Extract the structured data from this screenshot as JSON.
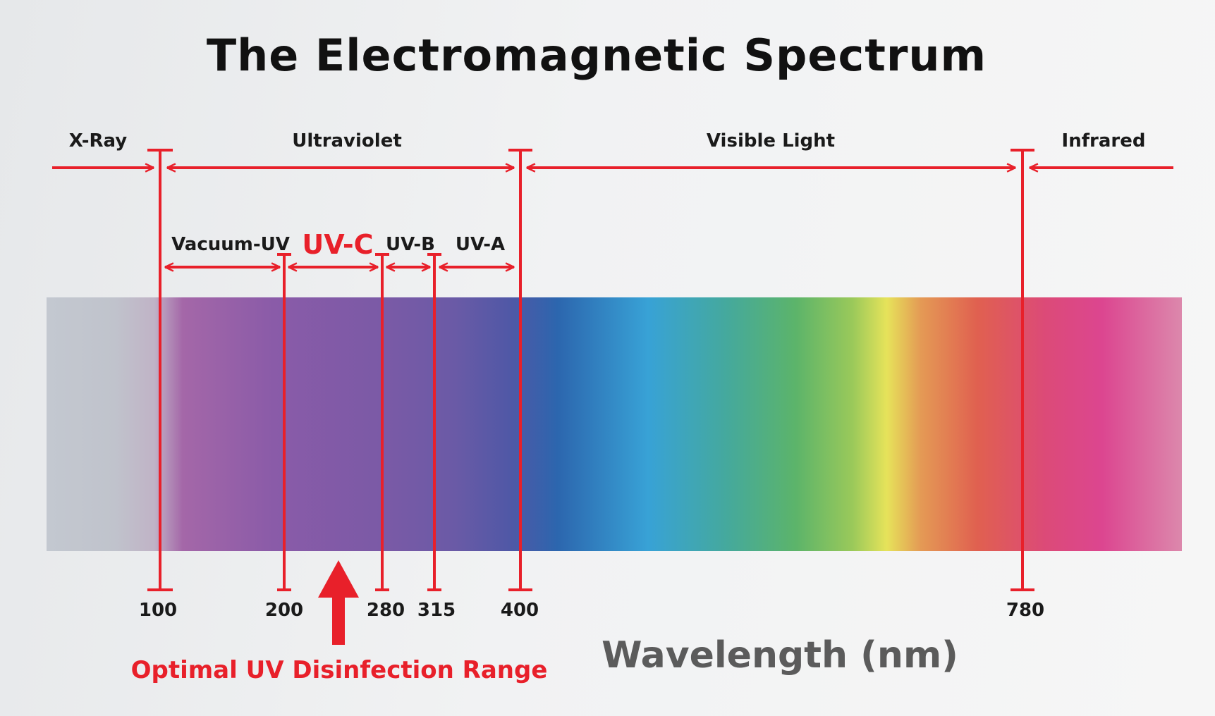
{
  "title": "The Electromagnetic Spectrum",
  "colors": {
    "accent": "#e8202a",
    "text": "#1a1a1a",
    "axis_text": "#5b5b5b"
  },
  "regions": [
    {
      "label": "X-Ray"
    },
    {
      "label": "Ultraviolet"
    },
    {
      "label": "Visible Light"
    },
    {
      "label": "Infrared"
    }
  ],
  "uv_bands": [
    {
      "label": "Vacuum-UV"
    },
    {
      "label": "UV-C",
      "highlight": true
    },
    {
      "label": "UV-B"
    },
    {
      "label": "UV-A"
    }
  ],
  "ticks": [
    "100",
    "200",
    "280",
    "315",
    "400",
    "780"
  ],
  "axis_label": "Wavelength (nm)",
  "callout": "Optimal UV Disinfection Range",
  "spectrum_colors": [
    "#c3c8d0",
    "#c0b3c6",
    "#a467a8",
    "#8a5ba8",
    "#7a5aa6",
    "#6a5aa6",
    "#5a5aa8",
    "#4a5aa6",
    "#2c66ae",
    "#38a2d6",
    "#40ab9c",
    "#5cb46a",
    "#9ac95a",
    "#e6e35a",
    "#e49a55",
    "#e06050",
    "#dc4a78",
    "#dc4690",
    "#dc88ac"
  ]
}
